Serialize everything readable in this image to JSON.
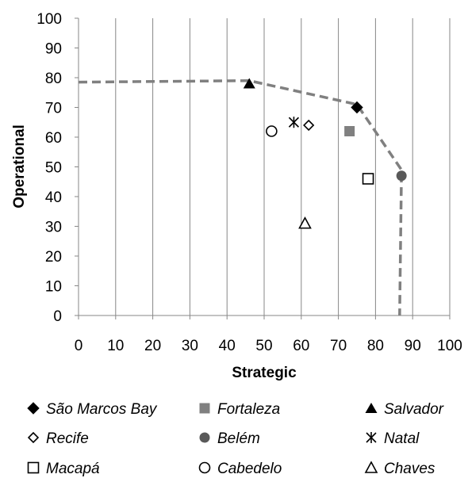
{
  "chart_data": {
    "type": "scatter",
    "xlabel": "Strategic",
    "ylabel": "Operational",
    "xlim": [
      0,
      100
    ],
    "ylim": [
      0,
      100
    ],
    "xticks": [
      0,
      10,
      20,
      30,
      40,
      50,
      60,
      70,
      80,
      90,
      100
    ],
    "yticks": [
      0,
      10,
      20,
      30,
      40,
      50,
      60,
      70,
      80,
      90,
      100
    ],
    "grid": "vertical",
    "legend_position": "bottom",
    "colors": {
      "black": "#000000",
      "gray": "#808080",
      "dark_gray": "#595959",
      "frontier": "#808080"
    },
    "series": [
      {
        "name": "São Marcos Bay",
        "marker": "diamond-filled",
        "color": "#000000",
        "x": 75,
        "y": 70
      },
      {
        "name": "Fortaleza",
        "marker": "square-filled",
        "color": "#808080",
        "x": 73,
        "y": 62
      },
      {
        "name": "Salvador",
        "marker": "triangle-filled",
        "color": "#000000",
        "x": 46,
        "y": 78
      },
      {
        "name": "Recife",
        "marker": "diamond-open",
        "color": "#000000",
        "x": 62,
        "y": 64
      },
      {
        "name": "Belém",
        "marker": "circle-filled",
        "color": "#595959",
        "x": 87,
        "y": 47
      },
      {
        "name": "Natal",
        "marker": "asterisk",
        "color": "#000000",
        "x": 58,
        "y": 65
      },
      {
        "name": "Macapá",
        "marker": "square-open",
        "color": "#000000",
        "x": 78,
        "y": 46
      },
      {
        "name": "Cabedelo",
        "marker": "circle-open",
        "color": "#000000",
        "x": 52,
        "y": 62
      },
      {
        "name": "Chaves",
        "marker": "triangle-open",
        "color": "#000000",
        "x": 61,
        "y": 31
      }
    ],
    "frontier": {
      "style": "dashed",
      "points": [
        [
          0,
          78.5
        ],
        [
          46,
          79
        ],
        [
          75,
          71
        ],
        [
          87,
          49
        ],
        [
          86.5,
          0
        ]
      ]
    }
  }
}
